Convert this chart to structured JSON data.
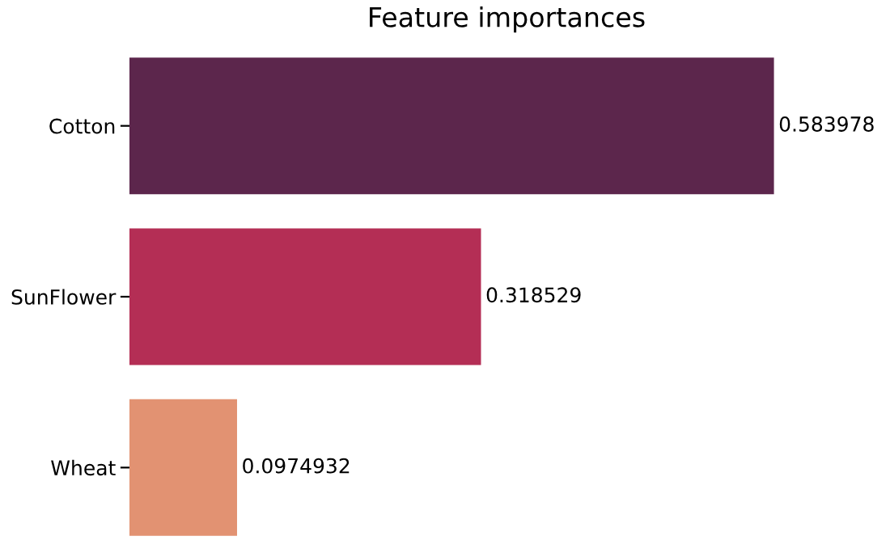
{
  "chart_data": {
    "type": "bar",
    "orientation": "horizontal",
    "title": "Feature importances",
    "categories": [
      "Cotton",
      "SunFlower",
      "Wheat"
    ],
    "values": [
      0.583978,
      0.318529,
      0.0974932
    ],
    "colors": [
      "#5c264c",
      "#b42e55",
      "#e29272"
    ],
    "data_labels": true,
    "tick_labels": "y",
    "grid": false,
    "legend": false
  }
}
